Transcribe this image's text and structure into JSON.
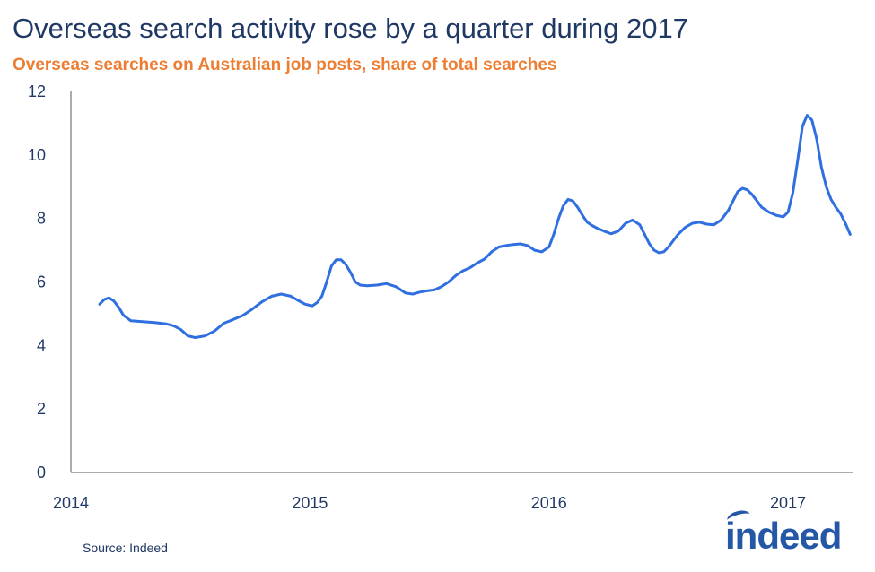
{
  "header": {
    "title": "Overseas search activity rose by a quarter during 2017",
    "subtitle": "Overseas searches on Australian job posts, share of total searches"
  },
  "footer": {
    "source": "Source: Indeed",
    "logo_text": "indeed"
  },
  "colors": {
    "line": "#2f6fe0",
    "title": "#1f3864",
    "subtitle": "#ed7d31",
    "axis": "#595959",
    "logo": "#2557a7"
  },
  "chart_data": {
    "type": "line",
    "title": "Overseas search activity rose by a quarter during 2017",
    "subtitle": "Overseas searches on Australian job posts, share of total searches",
    "xlabel": "",
    "ylabel": "",
    "xlim": [
      2014.0,
      2017.27
    ],
    "ylim": [
      0,
      12
    ],
    "x_ticks": [
      "2014",
      "2015",
      "2016",
      "2017"
    ],
    "x_tick_values": [
      2014,
      2015,
      2016,
      2017
    ],
    "y_ticks": [
      0,
      2,
      4,
      6,
      8,
      10,
      12
    ],
    "grid": false,
    "legend": "none",
    "series": [
      {
        "color": "#2f6fe0",
        "x": [
          2014.12,
          2014.14,
          2014.16,
          2014.18,
          2014.2,
          2014.22,
          2014.25,
          2014.3,
          2014.35,
          2014.4,
          2014.43,
          2014.46,
          2014.49,
          2014.52,
          2014.56,
          2014.6,
          2014.64,
          2014.68,
          2014.72,
          2014.76,
          2014.8,
          2014.84,
          2014.88,
          2014.92,
          2014.95,
          2014.98,
          2015.01,
          2015.03,
          2015.05,
          2015.07,
          2015.09,
          2015.11,
          2015.13,
          2015.15,
          2015.17,
          2015.19,
          2015.21,
          2015.24,
          2015.28,
          2015.32,
          2015.36,
          2015.4,
          2015.43,
          2015.46,
          2015.49,
          2015.52,
          2015.55,
          2015.58,
          2015.61,
          2015.64,
          2015.67,
          2015.7,
          2015.73,
          2015.76,
          2015.79,
          2015.82,
          2015.85,
          2015.88,
          2015.91,
          2015.94,
          2015.97,
          2016.0,
          2016.02,
          2016.04,
          2016.06,
          2016.08,
          2016.1,
          2016.12,
          2016.14,
          2016.16,
          2016.18,
          2016.2,
          2016.23,
          2016.26,
          2016.29,
          2016.32,
          2016.35,
          2016.38,
          2016.4,
          2016.42,
          2016.44,
          2016.46,
          2016.48,
          2016.5,
          2016.52,
          2016.54,
          2016.57,
          2016.6,
          2016.63,
          2016.66,
          2016.69,
          2016.72,
          2016.75,
          2016.77,
          2016.79,
          2016.81,
          2016.83,
          2016.85,
          2016.87,
          2016.89,
          2016.92,
          2016.95,
          2016.98,
          2017.0,
          2017.02,
          2017.04,
          2017.06,
          2017.08,
          2017.1,
          2017.12,
          2017.14,
          2017.16,
          2017.18,
          2017.2,
          2017.22,
          2017.24,
          2017.26
        ],
        "values": [
          5.3,
          5.45,
          5.5,
          5.4,
          5.2,
          4.95,
          4.78,
          4.75,
          4.72,
          4.68,
          4.62,
          4.5,
          4.3,
          4.25,
          4.3,
          4.45,
          4.7,
          4.82,
          4.95,
          5.15,
          5.38,
          5.55,
          5.62,
          5.55,
          5.42,
          5.3,
          5.25,
          5.35,
          5.55,
          6.0,
          6.5,
          6.7,
          6.7,
          6.55,
          6.3,
          6.0,
          5.9,
          5.88,
          5.9,
          5.95,
          5.85,
          5.65,
          5.62,
          5.68,
          5.72,
          5.75,
          5.85,
          6.0,
          6.2,
          6.35,
          6.45,
          6.6,
          6.72,
          6.95,
          7.1,
          7.15,
          7.18,
          7.2,
          7.15,
          7.0,
          6.95,
          7.1,
          7.5,
          8.0,
          8.4,
          8.6,
          8.55,
          8.35,
          8.1,
          7.88,
          7.78,
          7.7,
          7.6,
          7.52,
          7.6,
          7.85,
          7.95,
          7.8,
          7.5,
          7.2,
          7.0,
          6.92,
          6.95,
          7.1,
          7.3,
          7.5,
          7.72,
          7.85,
          7.88,
          7.82,
          7.8,
          7.95,
          8.25,
          8.55,
          8.85,
          8.95,
          8.9,
          8.75,
          8.55,
          8.35,
          8.2,
          8.1,
          8.05,
          8.2,
          8.8,
          9.8,
          10.9,
          11.25,
          11.1,
          10.5,
          9.6,
          9.0,
          8.6,
          8.35,
          8.15,
          7.85,
          7.5
        ]
      }
    ]
  }
}
